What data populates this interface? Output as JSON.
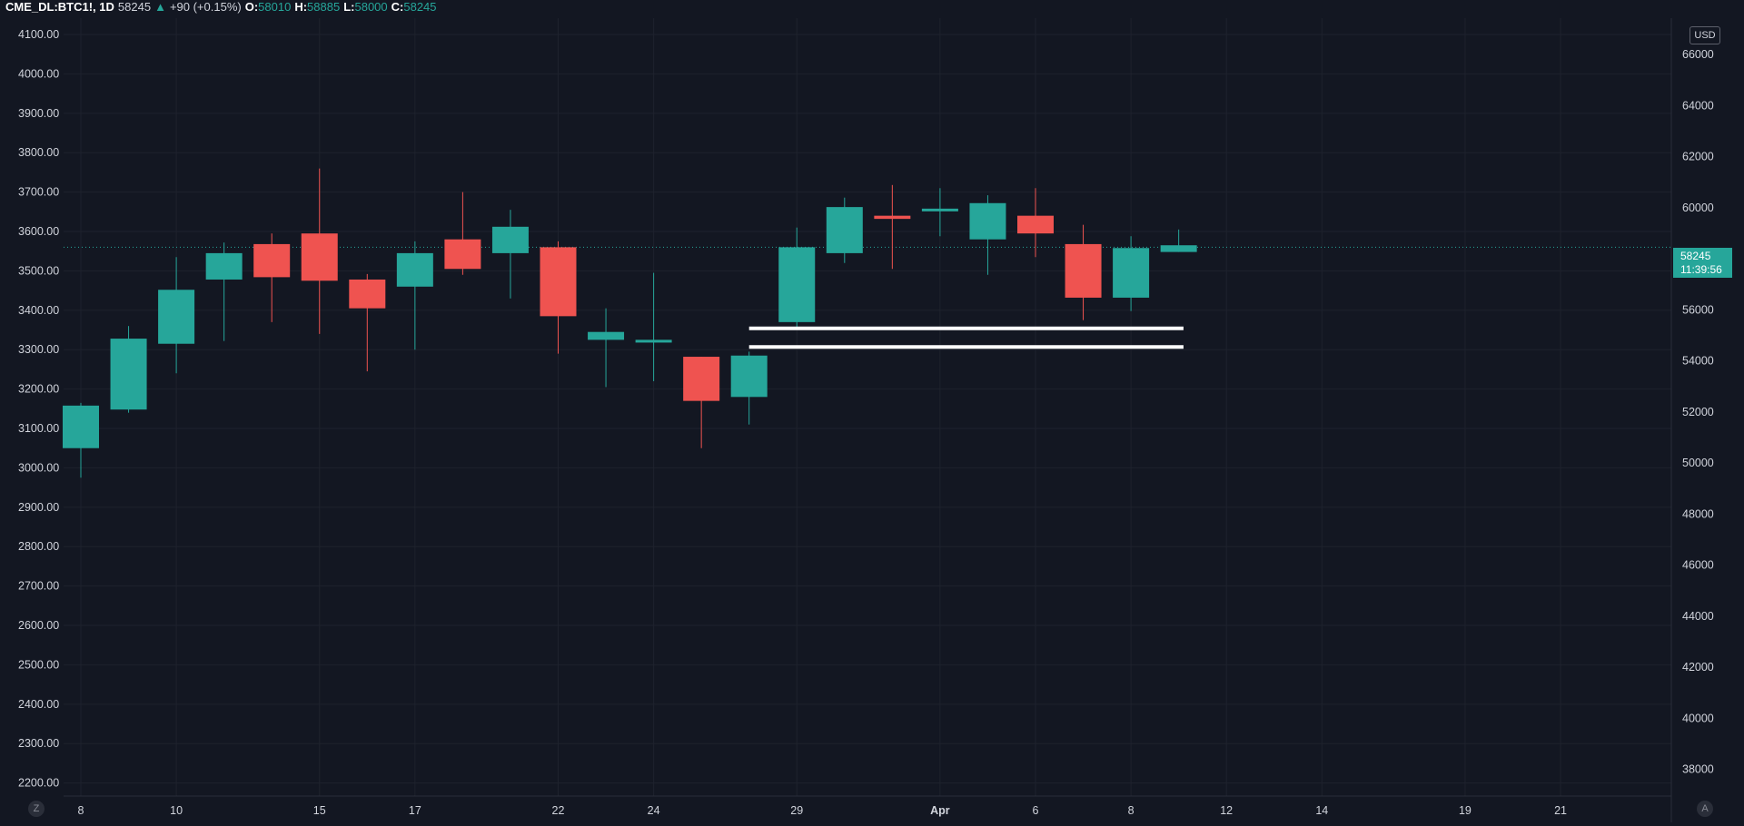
{
  "header": {
    "symbol": "CME_DL:BTC1!, 1D",
    "last": "58245",
    "arrow": "▲",
    "change": "+90 (+0.15%)",
    "o_label": "O:",
    "o_value": "58010",
    "h_label": "H:",
    "h_value": "58885",
    "l_label": "L:",
    "l_value": "58000",
    "c_label": "C:",
    "c_value": "58245"
  },
  "currency_badge": "USD",
  "price_tag": {
    "price": "58245",
    "countdown": "11:39:56"
  },
  "corner_buttons": {
    "left": "Z",
    "right": "A"
  },
  "colors": {
    "up": "#26a69a",
    "down": "#ef5350",
    "background": "#131722",
    "grid": "#1e222d"
  },
  "chart_data": {
    "type": "candlestick",
    "left_axis": {
      "ticks": [
        "4100.00",
        "4000.00",
        "3900.00",
        "3800.00",
        "3700.00",
        "3600.00",
        "3500.00",
        "3400.00",
        "3300.00",
        "3200.00",
        "3100.00",
        "3000.00",
        "2900.00",
        "2800.00",
        "2700.00",
        "2600.00",
        "2500.00",
        "2400.00",
        "2300.00",
        "2200.00"
      ],
      "range": [
        2160,
        4130
      ]
    },
    "right_axis": {
      "ticks": [
        "66000",
        "64000",
        "62000",
        "60000",
        "58000",
        "56000",
        "54000",
        "52000",
        "50000",
        "48000",
        "46000",
        "44000",
        "42000",
        "40000",
        "38000"
      ],
      "range": [
        36850,
        67250
      ]
    },
    "x_axis": {
      "labels": [
        {
          "text": "8",
          "bar": 0
        },
        {
          "text": "10",
          "bar": 2
        },
        {
          "text": "15",
          "bar": 5
        },
        {
          "text": "17",
          "bar": 7
        },
        {
          "text": "22",
          "bar": 10
        },
        {
          "text": "24",
          "bar": 12
        },
        {
          "text": "29",
          "bar": 15
        },
        {
          "text": "Apr",
          "bar": 18,
          "month": true
        },
        {
          "text": "6",
          "bar": 20
        },
        {
          "text": "8",
          "bar": 22
        },
        {
          "text": "12",
          "bar": 24
        },
        {
          "text": "14",
          "bar": 26
        },
        {
          "text": "19",
          "bar": 29
        },
        {
          "text": "21",
          "bar": 31
        }
      ]
    },
    "candles": [
      {
        "o": 3050,
        "h": 3165,
        "l": 2975,
        "c": 3158
      },
      {
        "o": 3148,
        "h": 3360,
        "l": 3140,
        "c": 3328
      },
      {
        "o": 3315,
        "h": 3535,
        "l": 3240,
        "c": 3452
      },
      {
        "o": 3478,
        "h": 3572,
        "l": 3322,
        "c": 3545
      },
      {
        "o": 3568,
        "h": 3595,
        "l": 3370,
        "c": 3484
      },
      {
        "o": 3595,
        "h": 3760,
        "l": 3340,
        "c": 3475
      },
      {
        "o": 3478,
        "h": 3492,
        "l": 3245,
        "c": 3405
      },
      {
        "o": 3460,
        "h": 3575,
        "l": 3300,
        "c": 3545
      },
      {
        "o": 3580,
        "h": 3700,
        "l": 3490,
        "c": 3505
      },
      {
        "o": 3545,
        "h": 3655,
        "l": 3430,
        "c": 3612
      },
      {
        "o": 3560,
        "h": 3575,
        "l": 3290,
        "c": 3385
      },
      {
        "o": 3325,
        "h": 3405,
        "l": 3205,
        "c": 3345
      },
      {
        "o": 3318,
        "h": 3495,
        "l": 3220,
        "c": 3325
      },
      {
        "o": 3282,
        "h": 3282,
        "l": 3050,
        "c": 3170
      },
      {
        "o": 3180,
        "h": 3295,
        "l": 3110,
        "c": 3285
      },
      {
        "o": 3370,
        "h": 3610,
        "l": 3355,
        "c": 3560
      },
      {
        "o": 3545,
        "h": 3686,
        "l": 3520,
        "c": 3662
      },
      {
        "o": 3640,
        "h": 3718,
        "l": 3505,
        "c": 3632
      },
      {
        "o": 3652,
        "h": 3710,
        "l": 3588,
        "c": 3658
      },
      {
        "o": 3580,
        "h": 3692,
        "l": 3490,
        "c": 3672
      },
      {
        "o": 3640,
        "h": 3710,
        "l": 3535,
        "c": 3595
      },
      {
        "o": 3568,
        "h": 3617,
        "l": 3375,
        "c": 3432
      },
      {
        "o": 3432,
        "h": 3588,
        "l": 3398,
        "c": 3558
      },
      {
        "o": 3548,
        "h": 3605,
        "l": 3548,
        "c": 3565
      }
    ],
    "last_price_line": 3560,
    "drawn_lines": [
      {
        "y": 3354,
        "from_bar": 14,
        "to_bar": 23.1
      },
      {
        "y": 3307,
        "from_bar": 14,
        "to_bar": 23.1
      }
    ],
    "grid": true
  }
}
